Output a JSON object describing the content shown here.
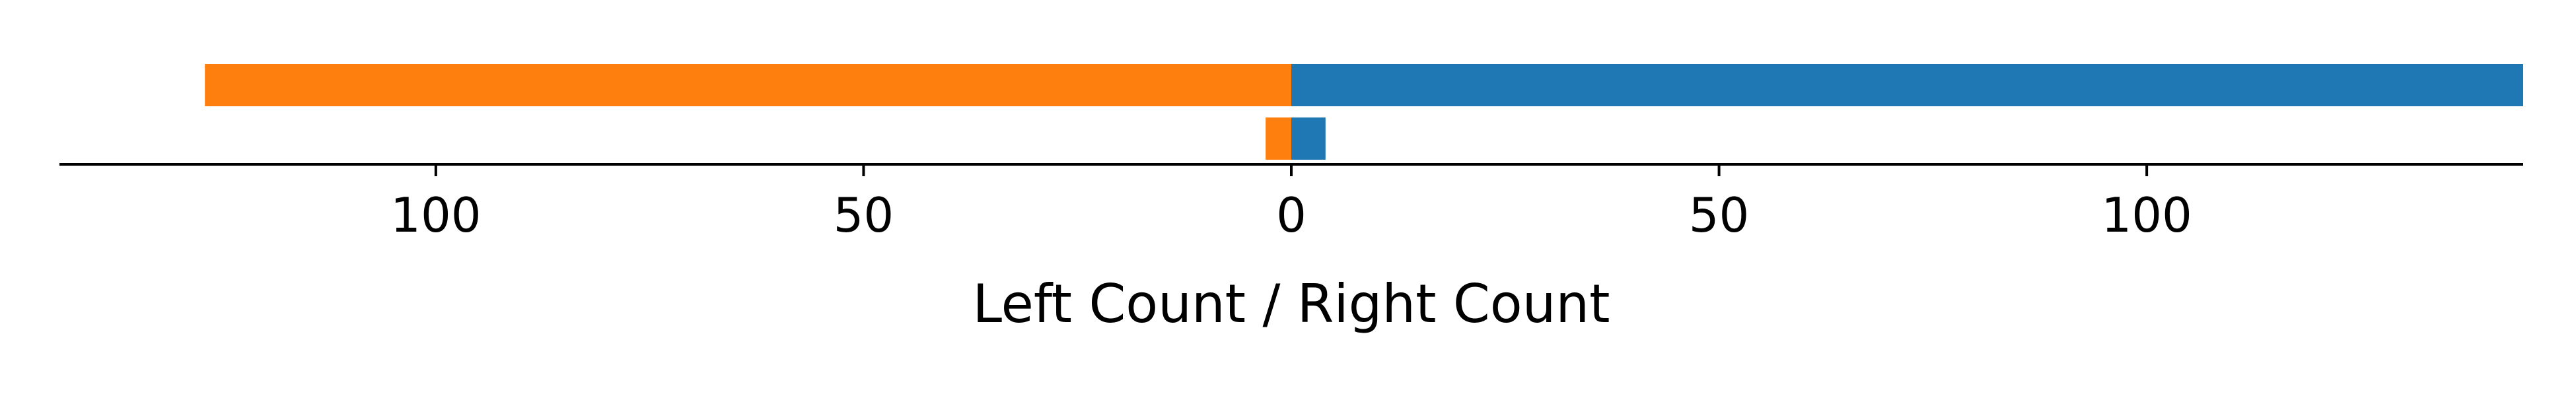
{
  "chart_data": {
    "type": "bar",
    "orientation": "horizontal-diverging",
    "title": "",
    "xlabel": "Left Count / Right Count",
    "ylabel": "",
    "xlim": [
      -144,
      144
    ],
    "x_ticks": [
      {
        "value": -100,
        "label": "100"
      },
      {
        "value": -50,
        "label": "50"
      },
      {
        "value": 0,
        "label": "0"
      },
      {
        "value": 50,
        "label": "50"
      },
      {
        "value": 100,
        "label": "100"
      }
    ],
    "rows": [
      {
        "left": 127,
        "right": 144
      },
      {
        "left": 3,
        "right": 4
      }
    ],
    "colors": {
      "left": "#ff7f0e",
      "right": "#1f77b4",
      "axis": "#000000"
    },
    "grid": false,
    "legend": "none"
  }
}
